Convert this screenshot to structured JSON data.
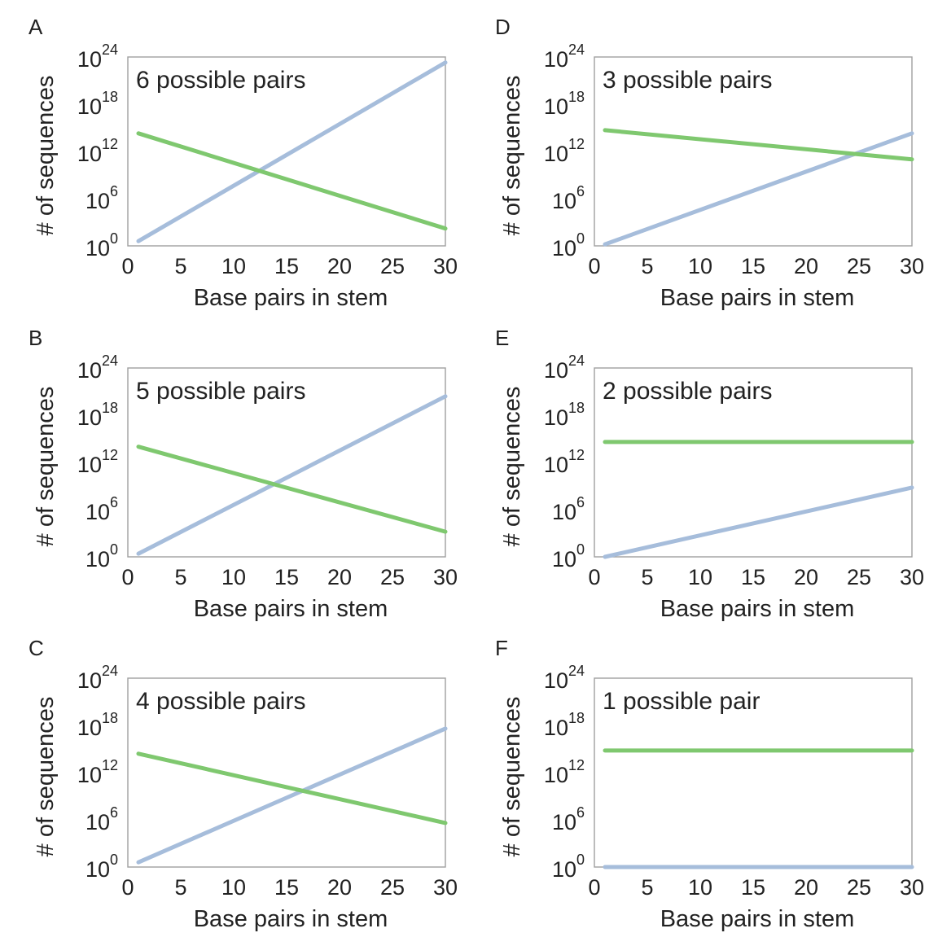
{
  "chart_data": [
    {
      "type": "line",
      "panel": "A",
      "title": "6 possible pairs",
      "xlabel": "Base pairs in stem",
      "ylabel": "# of sequences",
      "xlim": [
        0,
        30
      ],
      "xticks": [
        "0",
        "5",
        "10",
        "15",
        "20",
        "25",
        "30"
      ],
      "ylim_log10": [
        0,
        24
      ],
      "yticks": [
        {
          "base": "10",
          "exp": "0"
        },
        {
          "base": "10",
          "exp": "6"
        },
        {
          "base": "10",
          "exp": "12"
        },
        {
          "base": "10",
          "exp": "18"
        },
        {
          "base": "10",
          "exp": "24"
        }
      ],
      "series": [
        {
          "name": "blue",
          "color": "#a6bddb",
          "x": [
            1,
            30
          ],
          "log10_y": [
            0.6,
            23.3
          ]
        },
        {
          "name": "green",
          "color": "#7fc86f",
          "x": [
            1,
            30
          ],
          "log10_y": [
            14.3,
            2.2
          ]
        }
      ]
    },
    {
      "type": "line",
      "panel": "B",
      "title": "5 possible pairs",
      "xlabel": "Base pairs in stem",
      "ylabel": "# of sequences",
      "xlim": [
        0,
        30
      ],
      "xticks": [
        "0",
        "5",
        "10",
        "15",
        "20",
        "25",
        "30"
      ],
      "ylim_log10": [
        0,
        24
      ],
      "yticks": [
        {
          "base": "10",
          "exp": "0"
        },
        {
          "base": "10",
          "exp": "6"
        },
        {
          "base": "10",
          "exp": "12"
        },
        {
          "base": "10",
          "exp": "18"
        },
        {
          "base": "10",
          "exp": "24"
        }
      ],
      "series": [
        {
          "name": "blue",
          "color": "#a6bddb",
          "x": [
            1,
            30
          ],
          "log10_y": [
            0.4,
            20.4
          ]
        },
        {
          "name": "green",
          "color": "#7fc86f",
          "x": [
            1,
            30
          ],
          "log10_y": [
            14.0,
            3.2
          ]
        }
      ]
    },
    {
      "type": "line",
      "panel": "C",
      "title": "4 possible pairs",
      "xlabel": "Base pairs in stem",
      "ylabel": "# of sequences",
      "xlim": [
        0,
        30
      ],
      "xticks": [
        "0",
        "5",
        "10",
        "15",
        "20",
        "25",
        "30"
      ],
      "ylim_log10": [
        0,
        24
      ],
      "yticks": [
        {
          "base": "10",
          "exp": "0"
        },
        {
          "base": "10",
          "exp": "6"
        },
        {
          "base": "10",
          "exp": "12"
        },
        {
          "base": "10",
          "exp": "18"
        },
        {
          "base": "10",
          "exp": "24"
        }
      ],
      "series": [
        {
          "name": "blue",
          "color": "#a6bddb",
          "x": [
            1,
            30
          ],
          "log10_y": [
            0.6,
            17.6
          ]
        },
        {
          "name": "green",
          "color": "#7fc86f",
          "x": [
            1,
            30
          ],
          "log10_y": [
            14.4,
            5.6
          ]
        }
      ]
    },
    {
      "type": "line",
      "panel": "D",
      "title": "3 possible pairs",
      "xlabel": "Base pairs in stem",
      "ylabel": "# of sequences",
      "xlim": [
        0,
        30
      ],
      "xticks": [
        "0",
        "5",
        "10",
        "15",
        "20",
        "25",
        "30"
      ],
      "ylim_log10": [
        0,
        24
      ],
      "yticks": [
        {
          "base": "10",
          "exp": "0"
        },
        {
          "base": "10",
          "exp": "6"
        },
        {
          "base": "10",
          "exp": "12"
        },
        {
          "base": "10",
          "exp": "18"
        },
        {
          "base": "10",
          "exp": "24"
        }
      ],
      "series": [
        {
          "name": "blue",
          "color": "#a6bddb",
          "x": [
            1,
            30
          ],
          "log10_y": [
            0.2,
            14.3
          ]
        },
        {
          "name": "green",
          "color": "#7fc86f",
          "x": [
            1,
            30
          ],
          "log10_y": [
            14.7,
            11.0
          ]
        }
      ]
    },
    {
      "type": "line",
      "panel": "E",
      "title": "2 possible pairs",
      "xlabel": "Base pairs in stem",
      "ylabel": "# of sequences",
      "xlim": [
        0,
        30
      ],
      "xticks": [
        "0",
        "5",
        "10",
        "15",
        "20",
        "25",
        "30"
      ],
      "ylim_log10": [
        0,
        24
      ],
      "yticks": [
        {
          "base": "10",
          "exp": "0"
        },
        {
          "base": "10",
          "exp": "6"
        },
        {
          "base": "10",
          "exp": "12"
        },
        {
          "base": "10",
          "exp": "18"
        },
        {
          "base": "10",
          "exp": "24"
        }
      ],
      "series": [
        {
          "name": "blue",
          "color": "#a6bddb",
          "x": [
            1,
            30
          ],
          "log10_y": [
            0.0,
            8.8
          ]
        },
        {
          "name": "green",
          "color": "#7fc86f",
          "x": [
            1,
            30
          ],
          "log10_y": [
            14.6,
            14.6
          ]
        }
      ]
    },
    {
      "type": "line",
      "panel": "F",
      "title": "1 possible pair",
      "xlabel": "Base pairs in stem",
      "ylabel": "# of sequences",
      "xlim": [
        0,
        30
      ],
      "xticks": [
        "0",
        "5",
        "10",
        "15",
        "20",
        "25",
        "30"
      ],
      "ylim_log10": [
        0,
        24
      ],
      "yticks": [
        {
          "base": "10",
          "exp": "0"
        },
        {
          "base": "10",
          "exp": "6"
        },
        {
          "base": "10",
          "exp": "12"
        },
        {
          "base": "10",
          "exp": "18"
        },
        {
          "base": "10",
          "exp": "24"
        }
      ],
      "series": [
        {
          "name": "blue",
          "color": "#a6bddb",
          "x": [
            1,
            30
          ],
          "log10_y": [
            0.0,
            0.0
          ]
        },
        {
          "name": "green",
          "color": "#7fc86f",
          "x": [
            1,
            30
          ],
          "log10_y": [
            14.8,
            14.8
          ]
        }
      ]
    }
  ]
}
